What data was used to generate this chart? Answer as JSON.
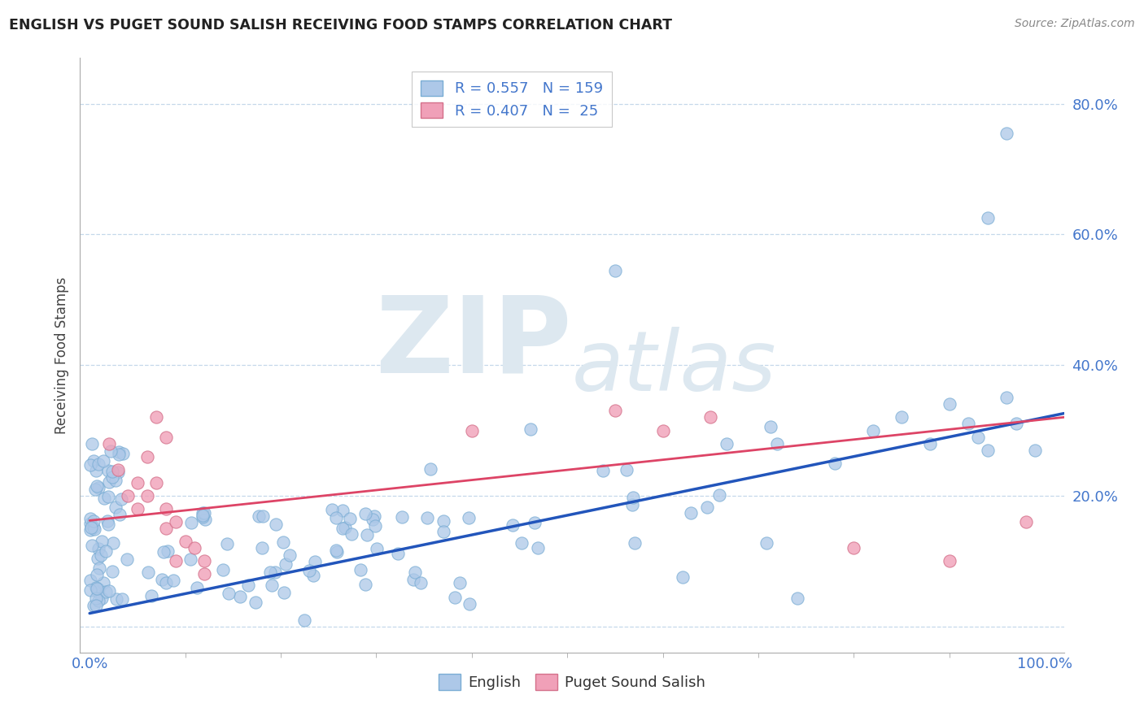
{
  "title": "ENGLISH VS PUGET SOUND SALISH RECEIVING FOOD STAMPS CORRELATION CHART",
  "source": "Source: ZipAtlas.com",
  "ylabel": "Receiving Food Stamps",
  "english_color": "#adc8e8",
  "english_edge_color": "#7aadd4",
  "salish_color": "#f0a0b8",
  "salish_edge_color": "#d4708a",
  "regression_english_color": "#2255bb",
  "regression_salish_color": "#dd4466",
  "english_R": 0.557,
  "english_N": 159,
  "salish_R": 0.407,
  "salish_N": 25,
  "background_color": "#ffffff",
  "watermark_color": "#dde8f0",
  "title_color": "#222222",
  "tick_color": "#4477cc",
  "ylabel_color": "#444444",
  "legend_english_label": "English",
  "legend_salish_label": "Puget Sound Salish",
  "xlim": [
    -0.01,
    1.02
  ],
  "ylim": [
    -0.04,
    0.87
  ],
  "ytick_positions": [
    0.0,
    0.2,
    0.4,
    0.6,
    0.8
  ],
  "ytick_labels": [
    "",
    "20.0%",
    "40.0%",
    "60.0%",
    "80.0%"
  ]
}
